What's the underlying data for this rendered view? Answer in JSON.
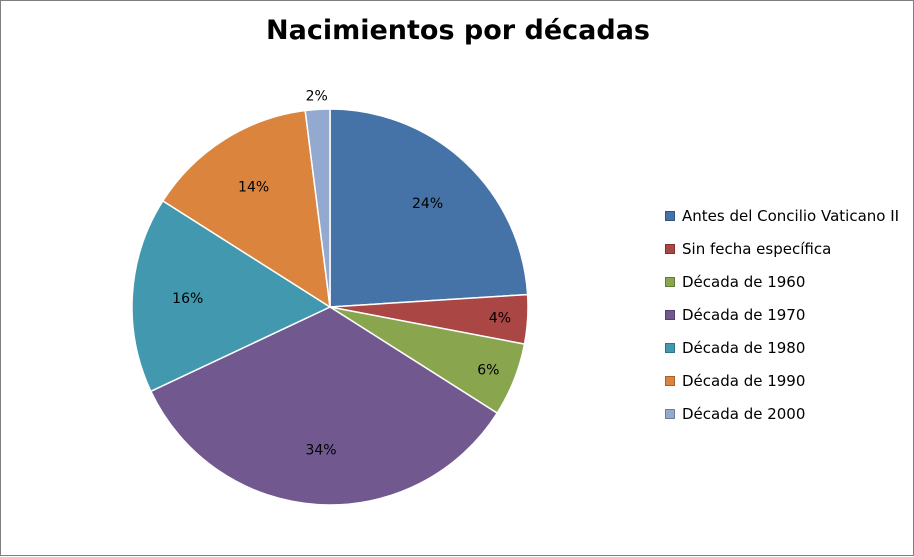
{
  "chart_data": {
    "type": "pie",
    "title": "Nacimientos por décadas",
    "legend_position": "right",
    "slices": [
      {
        "label": "Antes del Concilio Vaticano II",
        "value": 24,
        "display": "24%",
        "color": "#4572A7"
      },
      {
        "label": "Sin fecha específica",
        "value": 4,
        "display": "4%",
        "color": "#AA4643"
      },
      {
        "label": "Década de 1960",
        "value": 6,
        "display": "6%",
        "color": "#89A54E"
      },
      {
        "label": "Década de 1970",
        "value": 34,
        "display": "34%",
        "color": "#71588F"
      },
      {
        "label": "Década de 1980",
        "value": 16,
        "display": "16%",
        "color": "#4198AF"
      },
      {
        "label": "Década de 1990",
        "value": 14,
        "display": "14%",
        "color": "#DB843D"
      },
      {
        "label": "Década de 2000",
        "value": 2,
        "display": "2%",
        "color": "#93A9CF"
      }
    ]
  }
}
